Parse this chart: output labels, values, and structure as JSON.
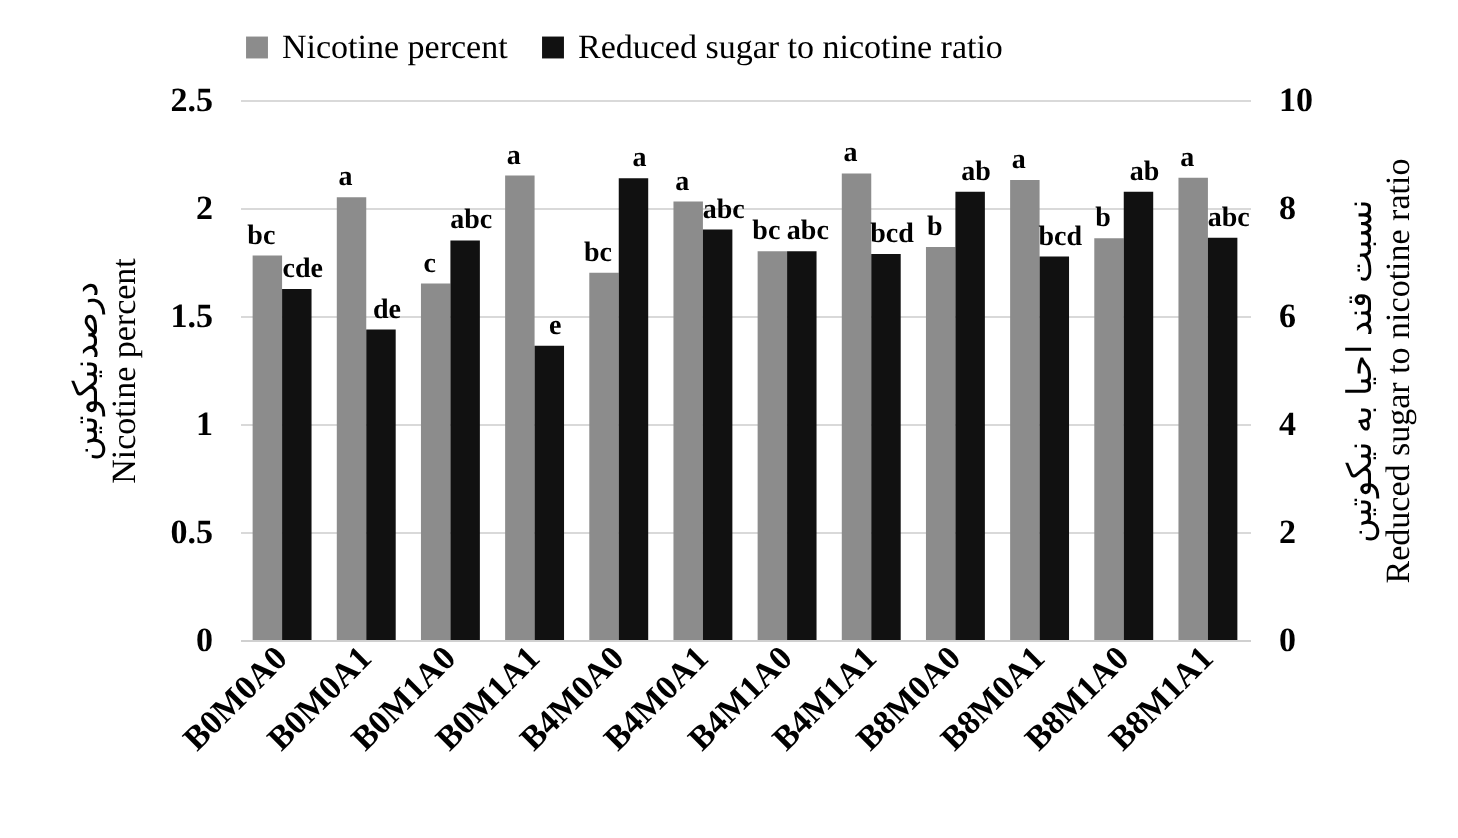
{
  "chart_data": {
    "type": "bar",
    "ylabel": "درصدنیکوتین\nNicotine percent",
    "y2label": "نسبت قند احیا به نیکوتین\nReduced sugar to nicotine ratio",
    "categories": [
      "B0M0A0",
      "B0M0A1",
      "B0M1A0",
      "B0M1A1",
      "B4M0A0",
      "B4M0A1",
      "B4M1A0",
      "B4M1A1",
      "B8M0A0",
      "B8M0A1",
      "B8M1A0",
      "B8M1A1"
    ],
    "series": [
      {
        "name": "Nicotine percent",
        "color": "#8c8c8c",
        "values": [
          1.78,
          2.05,
          1.65,
          2.15,
          1.7,
          2.03,
          1.8,
          2.16,
          1.82,
          2.13,
          1.86,
          2.14
        ],
        "value_labels": [
          "bc",
          "a",
          "c",
          "a",
          "bc",
          "a",
          "bc",
          "a",
          "b",
          "a",
          "b",
          "a"
        ]
      },
      {
        "name": "Reduced sugar to nicotine ratio",
        "color": "#111111",
        "axis": "y2",
        "values": [
          6.5,
          5.75,
          7.4,
          5.45,
          8.55,
          7.6,
          7.2,
          7.15,
          8.3,
          7.1,
          8.3,
          7.45
        ],
        "value_labels": [
          "cde",
          "de",
          "abc",
          "e",
          "a",
          "abc",
          "abc",
          "bcd",
          "ab",
          "bcd",
          "ab",
          "abc"
        ]
      }
    ],
    "ylim": [
      0,
      2.5
    ],
    "yticks": [
      0,
      0.5,
      1,
      1.5,
      2,
      2.5
    ],
    "y2lim": [
      0,
      10
    ],
    "y2ticks": [
      0,
      2,
      4,
      6,
      8,
      10
    ],
    "grid": "y",
    "legend": "top"
  }
}
